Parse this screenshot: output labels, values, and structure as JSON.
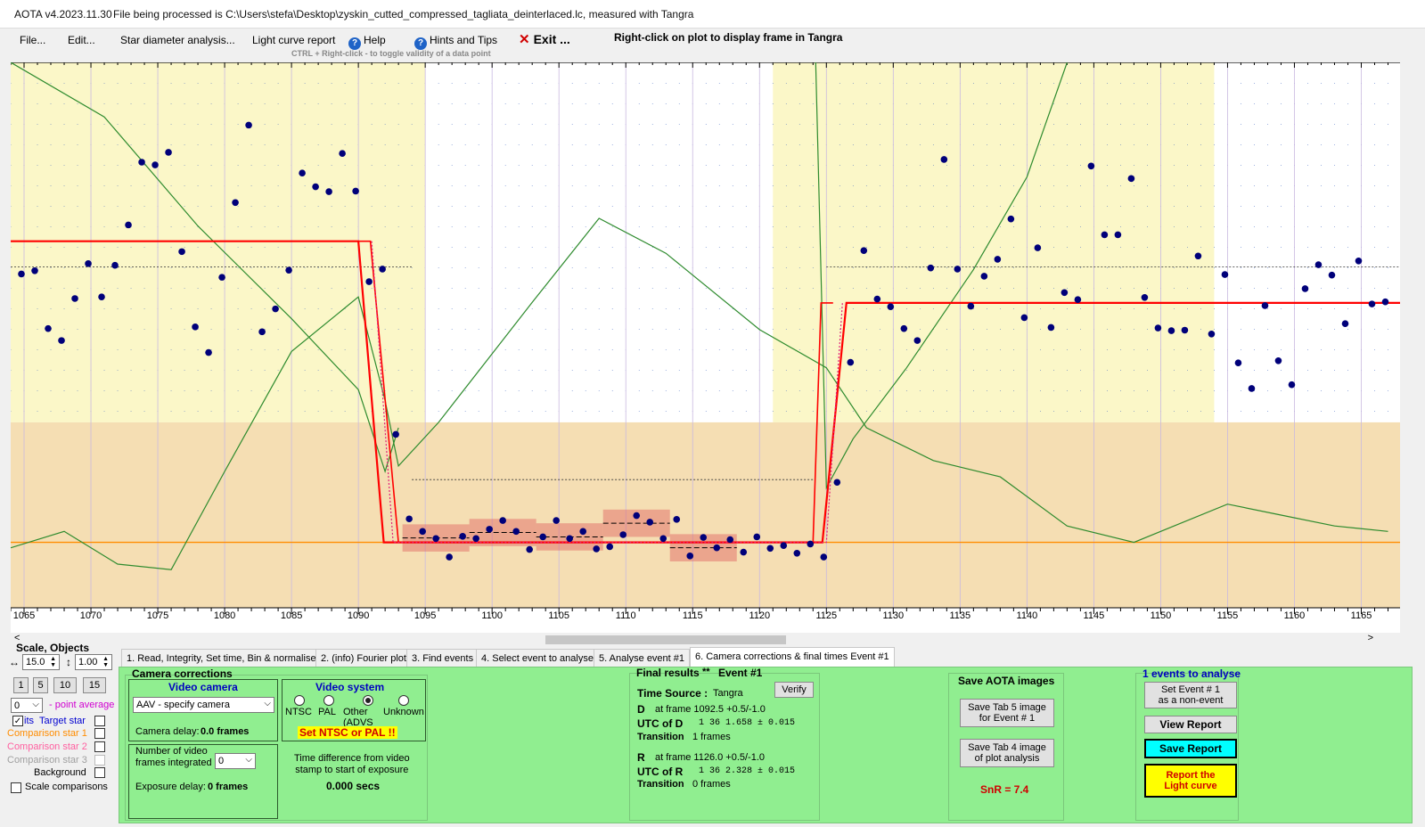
{
  "title": "AOTA v4.2023.11.30",
  "file_info": "File being processed is C:\\Users\\stefa\\Desktop\\zyskin_cutted_compressed_tagliata_deinterlaced.lc, measured with Tangra",
  "menu": {
    "file": "File...",
    "edit": "Edit...",
    "star_diameter": "Star diameter analysis...",
    "light_curve_report": "Light curve report",
    "help": "Help",
    "hints": "Hints and Tips",
    "exit": "Exit ...",
    "right_click_hint": "Right-click on plot to display frame in Tangra",
    "ctrl_hint": "CTRL + Right-click  -  to toggle validity of a data point"
  },
  "chart_data": {
    "type": "scatter",
    "x_ticks": [
      1065,
      1070,
      1075,
      1080,
      1085,
      1090,
      1095,
      1100,
      1105,
      1110,
      1115,
      1120,
      1125,
      1130,
      1135,
      1140,
      1145,
      1150,
      1155,
      1160,
      1165
    ],
    "xlim": [
      1064.0,
      1167.9
    ],
    "ylim": [
      0,
      1
    ],
    "colors": {
      "points": "#00007a",
      "model": "#ff0000",
      "green_line": "#2e8b2e",
      "orange_line": "#ff8c00",
      "pale_yellow": "#fbf7c8",
      "tan": "#f5deb3"
    },
    "points": [
      [
        1064.8,
        0.612
      ],
      [
        1065.8,
        0.618
      ],
      [
        1066.8,
        0.512
      ],
      [
        1067.8,
        0.49
      ],
      [
        1068.8,
        0.567
      ],
      [
        1069.8,
        0.631
      ],
      [
        1070.8,
        0.57
      ],
      [
        1071.8,
        0.628
      ],
      [
        1072.8,
        0.702
      ],
      [
        1073.8,
        0.817
      ],
      [
        1074.8,
        0.812
      ],
      [
        1075.8,
        0.835
      ],
      [
        1076.8,
        0.653
      ],
      [
        1077.8,
        0.515
      ],
      [
        1078.8,
        0.468
      ],
      [
        1079.8,
        0.606
      ],
      [
        1080.8,
        0.743
      ],
      [
        1081.8,
        0.885
      ],
      [
        1082.8,
        0.506
      ],
      [
        1083.8,
        0.548
      ],
      [
        1084.8,
        0.619
      ],
      [
        1085.8,
        0.797
      ],
      [
        1086.8,
        0.772
      ],
      [
        1087.8,
        0.763
      ],
      [
        1088.8,
        0.833
      ],
      [
        1089.8,
        0.764
      ],
      [
        1090.8,
        0.598
      ],
      [
        1091.8,
        0.621
      ],
      [
        1092.8,
        0.318
      ],
      [
        1093.8,
        0.163
      ],
      [
        1094.8,
        0.14
      ],
      [
        1095.8,
        0.127
      ],
      [
        1096.8,
        0.093
      ],
      [
        1097.8,
        0.131
      ],
      [
        1098.8,
        0.127
      ],
      [
        1099.8,
        0.144
      ],
      [
        1100.8,
        0.16
      ],
      [
        1101.8,
        0.14
      ],
      [
        1102.8,
        0.107
      ],
      [
        1103.8,
        0.13
      ],
      [
        1104.8,
        0.16
      ],
      [
        1105.8,
        0.127
      ],
      [
        1106.8,
        0.14
      ],
      [
        1107.8,
        0.108
      ],
      [
        1108.8,
        0.112
      ],
      [
        1109.8,
        0.134
      ],
      [
        1110.8,
        0.169
      ],
      [
        1111.8,
        0.157
      ],
      [
        1112.8,
        0.127
      ],
      [
        1113.8,
        0.162
      ],
      [
        1114.8,
        0.095
      ],
      [
        1115.8,
        0.129
      ],
      [
        1116.8,
        0.11
      ],
      [
        1117.8,
        0.125
      ],
      [
        1118.8,
        0.102
      ],
      [
        1119.8,
        0.13
      ],
      [
        1120.8,
        0.109
      ],
      [
        1121.8,
        0.114
      ],
      [
        1122.8,
        0.1
      ],
      [
        1123.8,
        0.117
      ],
      [
        1124.8,
        0.093
      ],
      [
        1125.8,
        0.23
      ],
      [
        1126.8,
        0.45
      ],
      [
        1127.8,
        0.655
      ],
      [
        1128.8,
        0.566
      ],
      [
        1129.8,
        0.552
      ],
      [
        1130.8,
        0.512
      ],
      [
        1131.8,
        0.49
      ],
      [
        1132.8,
        0.623
      ],
      [
        1133.8,
        0.822
      ],
      [
        1134.8,
        0.621
      ],
      [
        1135.8,
        0.553
      ],
      [
        1136.8,
        0.608
      ],
      [
        1137.8,
        0.639
      ],
      [
        1138.8,
        0.713
      ],
      [
        1139.8,
        0.532
      ],
      [
        1140.8,
        0.66
      ],
      [
        1141.8,
        0.514
      ],
      [
        1142.8,
        0.578
      ],
      [
        1143.8,
        0.565
      ],
      [
        1144.8,
        0.81
      ],
      [
        1145.8,
        0.684
      ],
      [
        1146.8,
        0.684
      ],
      [
        1147.8,
        0.787
      ],
      [
        1148.8,
        0.569
      ],
      [
        1149.8,
        0.513
      ],
      [
        1150.8,
        0.508
      ],
      [
        1151.8,
        0.509
      ],
      [
        1152.8,
        0.645
      ],
      [
        1153.8,
        0.502
      ],
      [
        1154.8,
        0.611
      ],
      [
        1155.8,
        0.449
      ],
      [
        1156.8,
        0.402
      ],
      [
        1157.8,
        0.554
      ],
      [
        1158.8,
        0.453
      ],
      [
        1159.8,
        0.409
      ],
      [
        1160.8,
        0.585
      ],
      [
        1161.8,
        0.629
      ],
      [
        1162.8,
        0.61
      ],
      [
        1163.8,
        0.521
      ],
      [
        1164.8,
        0.636
      ],
      [
        1165.8,
        0.557
      ],
      [
        1166.8,
        0.561
      ]
    ],
    "model": [
      [
        1064,
        0.672
      ],
      [
        1090,
        0.672
      ],
      [
        1091.9,
        0.12
      ],
      [
        1124.7,
        0.12
      ],
      [
        1126.5,
        0.559
      ],
      [
        1168,
        0.559
      ]
    ],
    "model_outer": [
      [
        1090,
        0.672
      ],
      [
        1090.9,
        0.672
      ],
      [
        1093,
        0.12
      ],
      [
        1124,
        0.12
      ],
      [
        1124.6,
        0.559
      ],
      [
        1125.5,
        0.559
      ]
    ],
    "dotted_model": [
      [
        1091,
        0.672
      ],
      [
        1092.6,
        0.12
      ],
      [
        1125,
        0.12
      ],
      [
        1126.2,
        0.559
      ]
    ],
    "green_curve": [
      [
        1064,
        0.11
      ],
      [
        1068,
        0.14
      ],
      [
        1072,
        0.08
      ],
      [
        1076,
        0.07
      ],
      [
        1080,
        0.25
      ],
      [
        1085,
        0.47
      ],
      [
        1090,
        0.57
      ],
      [
        1092,
        0.38
      ],
      [
        1093,
        0.26
      ],
      [
        1096,
        0.34
      ],
      [
        1103,
        0.56
      ],
      [
        1108,
        0.714
      ],
      [
        1113,
        0.65
      ],
      [
        1120,
        0.51
      ],
      [
        1125,
        0.44
      ],
      [
        1128,
        0.33
      ],
      [
        1133,
        0.27
      ],
      [
        1138,
        0.24
      ],
      [
        1143,
        0.15
      ],
      [
        1148,
        0.12
      ],
      [
        1151,
        0.15
      ],
      [
        1155,
        0.19
      ],
      [
        1159,
        0.17
      ],
      [
        1163,
        0.15
      ],
      [
        1167,
        0.14
      ]
    ],
    "green_curve2": [
      [
        1064,
        1.0
      ],
      [
        1071,
        0.9
      ],
      [
        1078,
        0.7
      ],
      [
        1085,
        0.53
      ],
      [
        1090,
        0.4
      ],
      [
        1092,
        0.25
      ],
      [
        1093,
        0.33
      ]
    ],
    "green_curve3": [
      [
        1124.2,
        1.0
      ],
      [
        1125,
        0.22
      ],
      [
        1127,
        0.31
      ],
      [
        1131,
        0.44
      ],
      [
        1136,
        0.62
      ],
      [
        1140,
        0.79
      ],
      [
        1143,
        1.0
      ]
    ],
    "orange_level": 0.12,
    "pale_regions": [
      [
        1064,
        1095
      ],
      [
        1121,
        1154
      ]
    ],
    "tan_y_below": 0.34,
    "hline1_y": 0.625,
    "hline2_y": 0.235
  },
  "tabs": [
    {
      "label": "1.  Read, Integrity, Set time, Bin & normalise"
    },
    {
      "label": "2. (info)  Fourier plot"
    },
    {
      "label": "3. Find events"
    },
    {
      "label": "4. Select event to analyse"
    },
    {
      "label": "5. Analyse event #1"
    },
    {
      "label": "6. Camera corrections & final times Event #1"
    }
  ],
  "left_panel": {
    "scale_objects": "Scale,  Objects",
    "h_scale": "15.0",
    "v_scale": "1.00",
    "zoom_buttons": [
      "1",
      "5",
      "10",
      "15"
    ],
    "point_average_value": "0",
    "point_average_label": "- point average",
    "its": "its",
    "target_star": "Target star",
    "comp1": "Comparison star 1",
    "comp2": "Comparison star 2",
    "comp3": "Comparison star 3",
    "background": "Background",
    "scale_comparisons": "Scale comparisons"
  },
  "camera": {
    "title": "Camera corrections",
    "video_camera": "Video camera",
    "camera_model": "AAV - specify camera",
    "camera_delay_label": "Camera delay:",
    "camera_delay_value": "0.0 frames",
    "video_system": "Video system",
    "ntsc": "NTSC",
    "pal": "PAL",
    "other": "Other",
    "other_sub": "(ADVS",
    "unknown": "Unknown",
    "set_ntsc_pal": "Set NTSC or PAL !!",
    "frames_integrated_label": "Number of video\nframes integrated",
    "frames_integrated_value": "0",
    "exposure_delay_label": "Exposure delay:",
    "exposure_delay_value": "0 frames",
    "time_diff_label": "Time difference from video\nstamp to start of exposure",
    "time_diff_value": "0.000 secs"
  },
  "final": {
    "title": "Final results",
    "stars": "**",
    "event": "Event #1",
    "time_source_label": "Time Source :",
    "time_source_value": "Tangra",
    "verify": "Verify",
    "d_label": "D",
    "d_frame": "at frame 1092.5  +0.5/-1.0",
    "utc_d_label": "UTC of D",
    "utc_d_value": "1 36  1.658 ± 0.015",
    "transition_label": "Transition",
    "transition_d": "1 frames",
    "r_label": "R",
    "r_frame": "at frame 1126.0  +0.5/-1.0",
    "utc_r_label": "UTC of R",
    "utc_r_value": "1 36  2.328 ± 0.015",
    "transition_r": "0 frames"
  },
  "save": {
    "title": "Save AOTA images",
    "tab5": "Save Tab 5 image\nfor Event # 1",
    "tab4": "Save Tab 4 image\nof plot analysis",
    "snr": "SnR = 7.4"
  },
  "events": {
    "title": "1  events to analyse",
    "set_event": "Set Event # 1\nas a non-event",
    "view_report": "View Report",
    "save_report": "Save Report",
    "report_lc": "Report the\nLight curve"
  }
}
